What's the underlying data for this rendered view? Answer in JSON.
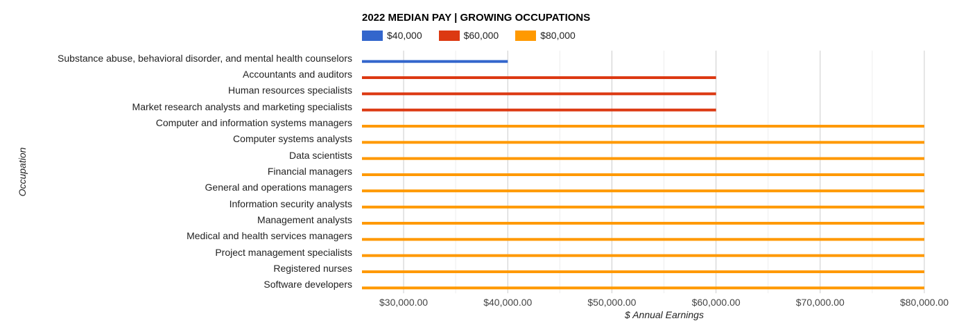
{
  "chart_data": {
    "type": "bar",
    "orientation": "horizontal",
    "title": "2022 MEDIAN PAY | GROWING OCCUPATIONS",
    "xlabel": "$ Annual Earnings",
    "ylabel": "Occupation",
    "xlim": [
      26000,
      80000
    ],
    "grid": true,
    "legend_position": "top",
    "legend": [
      {
        "label": "$40,000",
        "color": "#3366cc"
      },
      {
        "label": "$60,000",
        "color": "#dc3912"
      },
      {
        "label": "$80,000",
        "color": "#ff9900"
      }
    ],
    "x_ticks": [
      {
        "value": 30000,
        "label": "$30,000.00"
      },
      {
        "value": 40000,
        "label": "$40,000.00"
      },
      {
        "value": 50000,
        "label": "$50,000.00"
      },
      {
        "value": 60000,
        "label": "$60,000.00"
      },
      {
        "value": 70000,
        "label": "$70,000.00"
      },
      {
        "value": 80000,
        "label": "$80,000.00"
      }
    ],
    "minor_ticks": [
      35000,
      45000,
      55000,
      65000,
      75000
    ],
    "categories": [
      "Substance abuse, behavioral disorder, and mental health counselors",
      "Accountants and auditors",
      "Human resources specialists",
      "Market research analysts and marketing specialists",
      "Computer and information systems managers",
      "Computer systems analysts",
      "Data scientists",
      "Financial managers",
      "General and operations managers",
      "Information security analysts",
      "Management analysts",
      "Medical and health services managers",
      "Project management specialists",
      "Registered nurses",
      "Software developers"
    ],
    "values": [
      40000,
      60000,
      60000,
      60000,
      80000,
      80000,
      80000,
      80000,
      80000,
      80000,
      80000,
      80000,
      80000,
      80000,
      80000
    ],
    "series_index": [
      0,
      1,
      1,
      1,
      2,
      2,
      2,
      2,
      2,
      2,
      2,
      2,
      2,
      2,
      2
    ]
  }
}
